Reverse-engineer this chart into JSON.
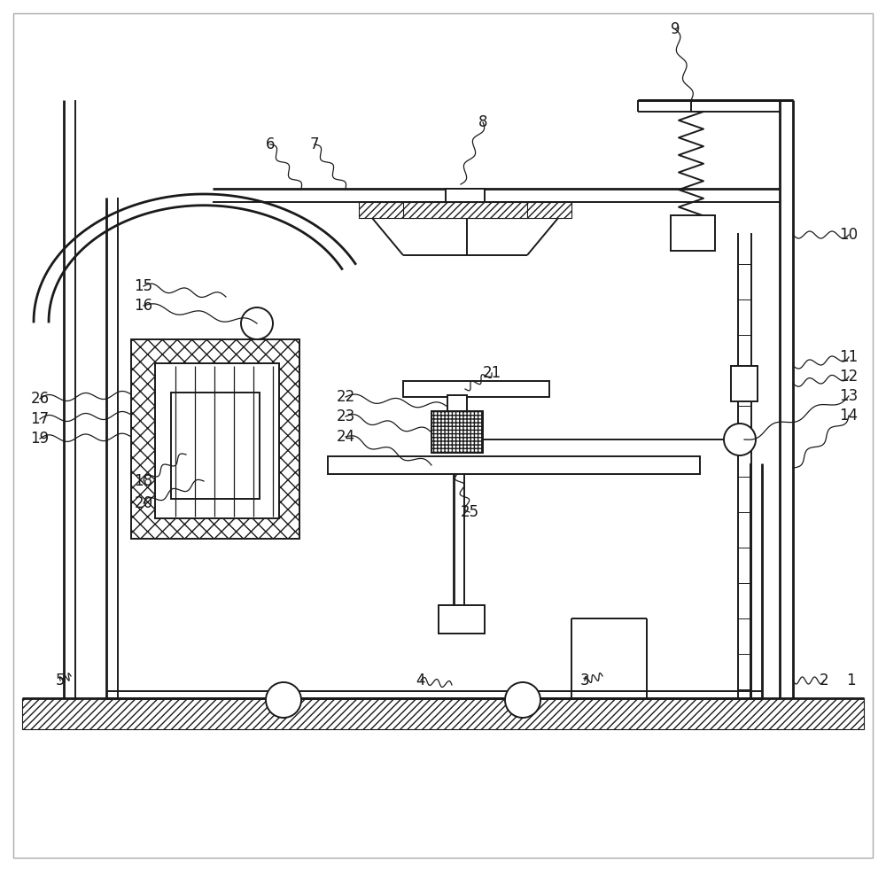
{
  "bg_color": "#ffffff",
  "line_color": "#1a1a1a",
  "lw": 1.4,
  "lw_thick": 2.0,
  "figsize": [
    10.0,
    9.83
  ],
  "dpi": 100,
  "border_color": "#cccccc"
}
